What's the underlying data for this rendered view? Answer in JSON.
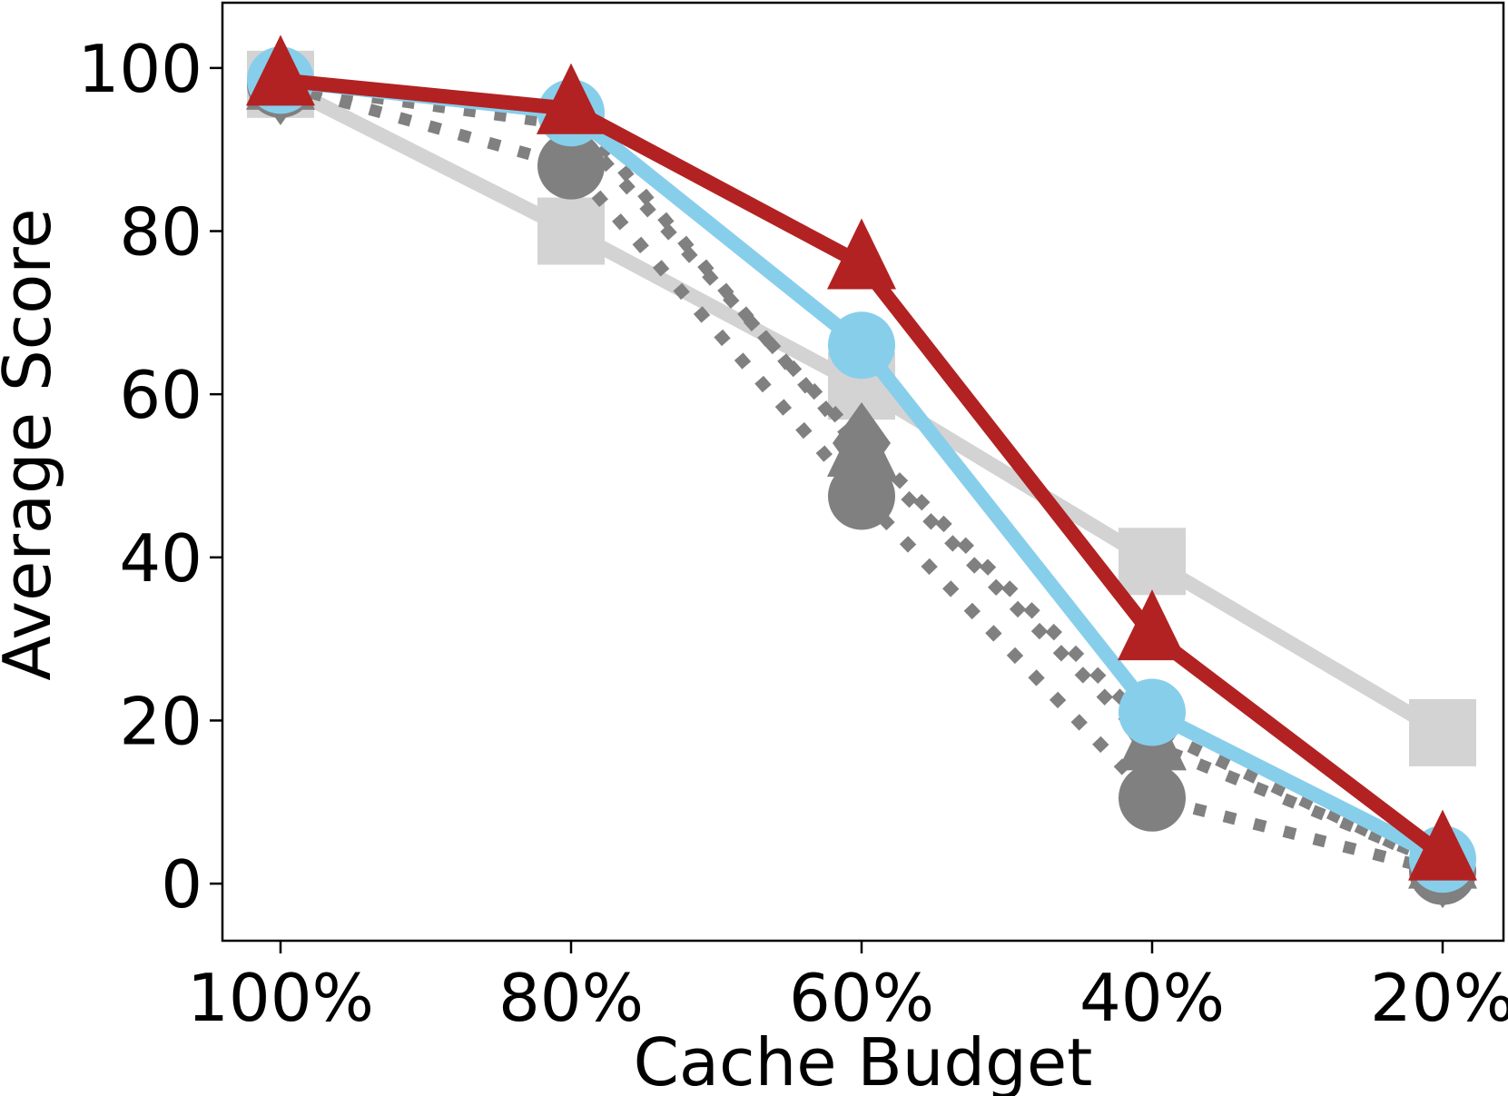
{
  "chart_data": {
    "type": "line",
    "title": "",
    "xlabel": "Cache Budget",
    "ylabel": "Average Score",
    "categories": [
      "100%",
      "80%",
      "60%",
      "40%",
      "20%"
    ],
    "ylim": [
      -7,
      108
    ],
    "yticks": [
      0,
      20,
      40,
      60,
      80,
      100
    ],
    "grid": false,
    "legend": "none",
    "series": [
      {
        "values": [
          98,
          80,
          61,
          39.5,
          18.5
        ],
        "color": "#d3d3d3",
        "line": "solid",
        "marker": "square"
      },
      {
        "values": [
          98,
          88,
          47.5,
          10.5,
          1.5
        ],
        "color": "#808080",
        "line": "dotted",
        "marker": "circle"
      },
      {
        "values": [
          98,
          93,
          54,
          19,
          2
        ],
        "color": "#808080",
        "line": "dotted",
        "marker": "diamond"
      },
      {
        "values": [
          98,
          95,
          53,
          17,
          2.5
        ],
        "color": "#808080",
        "line": "dotted",
        "marker": "triangle"
      },
      {
        "values": [
          98.5,
          94.5,
          66,
          21,
          3
        ],
        "color": "#87ceeb",
        "line": "solid",
        "marker": "circle"
      },
      {
        "values": [
          98.5,
          95,
          76,
          30.5,
          3.5
        ],
        "color": "#b22222",
        "line": "solid",
        "marker": "triangle"
      }
    ]
  }
}
